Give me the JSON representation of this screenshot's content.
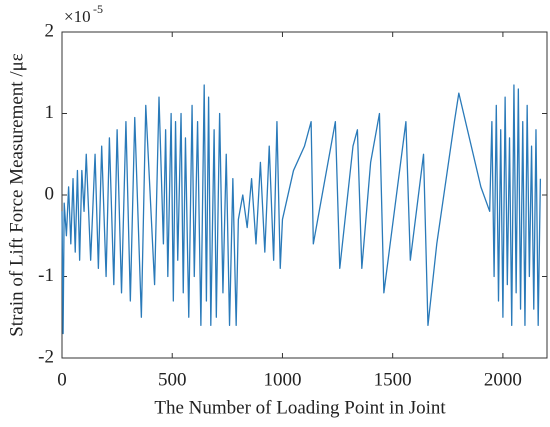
{
  "chart_data": {
    "type": "line",
    "x_label": "The Number of Loading Point in Joint",
    "y_label": "Strain of Lift Force Measurement /με",
    "y_multiplier": {
      "base": "×10",
      "exponent": "-5"
    },
    "xlim": [
      0,
      2200
    ],
    "xticks": [
      0,
      500,
      1000,
      1500,
      2000
    ],
    "ylim": [
      -2,
      2
    ],
    "yticks": [
      -2,
      -1,
      0,
      1,
      2
    ],
    "series": [
      {
        "color": "#2a7ab9",
        "x": [
          0,
          5,
          10,
          20,
          30,
          40,
          50,
          60,
          70,
          80,
          90,
          100,
          110,
          130,
          150,
          165,
          180,
          200,
          215,
          235,
          250,
          270,
          290,
          310,
          330,
          360,
          380,
          420,
          440,
          460,
          470,
          480,
          495,
          505,
          515,
          525,
          540,
          550,
          560,
          575,
          590,
          600,
          615,
          630,
          645,
          655,
          665,
          675,
          690,
          700,
          715,
          730,
          745,
          760,
          775,
          790,
          800,
          820,
          840,
          860,
          880,
          900,
          920,
          940,
          960,
          975,
          990,
          1000,
          1050,
          1100,
          1130,
          1140,
          1200,
          1240,
          1260,
          1320,
          1340,
          1360,
          1400,
          1440,
          1460,
          1560,
          1580,
          1640,
          1660,
          1700,
          1780,
          1800,
          1900,
          1940,
          1950,
          1960,
          1970,
          1980,
          1990,
          2000,
          2010,
          2020,
          2030,
          2040,
          2050,
          2060,
          2070,
          2080,
          2090,
          2100,
          2110,
          2120,
          2130,
          2140,
          2150,
          2160,
          2170
        ],
        "values": [
          -0.2,
          -1.7,
          -0.1,
          -0.5,
          0.1,
          -0.6,
          0.2,
          -0.7,
          0.3,
          -0.8,
          0.3,
          -0.2,
          0.5,
          -0.8,
          0.5,
          -0.9,
          0.6,
          -1.0,
          0.7,
          -1.1,
          0.8,
          -1.2,
          0.9,
          -1.3,
          0.95,
          -1.5,
          1.1,
          -1.1,
          1.2,
          -0.6,
          0.8,
          -1.0,
          1.0,
          -1.3,
          0.9,
          -0.8,
          1.0,
          -1.2,
          0.7,
          -1.5,
          1.1,
          -1.0,
          0.9,
          -1.6,
          1.35,
          -1.3,
          1.2,
          -1.6,
          0.8,
          -1.5,
          1.0,
          -1.2,
          0.5,
          -1.6,
          0.2,
          -1.6,
          -0.3,
          0.0,
          -0.4,
          0.2,
          -0.6,
          0.4,
          -0.7,
          0.6,
          -0.8,
          0.9,
          -0.9,
          -0.3,
          0.3,
          0.6,
          0.9,
          -0.6,
          0.3,
          0.9,
          -0.9,
          0.6,
          0.8,
          -0.9,
          0.4,
          1.0,
          -1.2,
          0.9,
          -0.8,
          0.5,
          -1.6,
          -0.6,
          0.9,
          1.25,
          0.1,
          -0.2,
          0.9,
          -1.0,
          1.1,
          -1.3,
          0.8,
          -1.5,
          1.2,
          -1.1,
          0.7,
          -1.6,
          1.35,
          -1.2,
          1.3,
          -1.4,
          0.9,
          -1.6,
          1.1,
          -1.0,
          0.6,
          -1.4,
          0.8,
          -1.6,
          0.2
        ]
      }
    ]
  }
}
